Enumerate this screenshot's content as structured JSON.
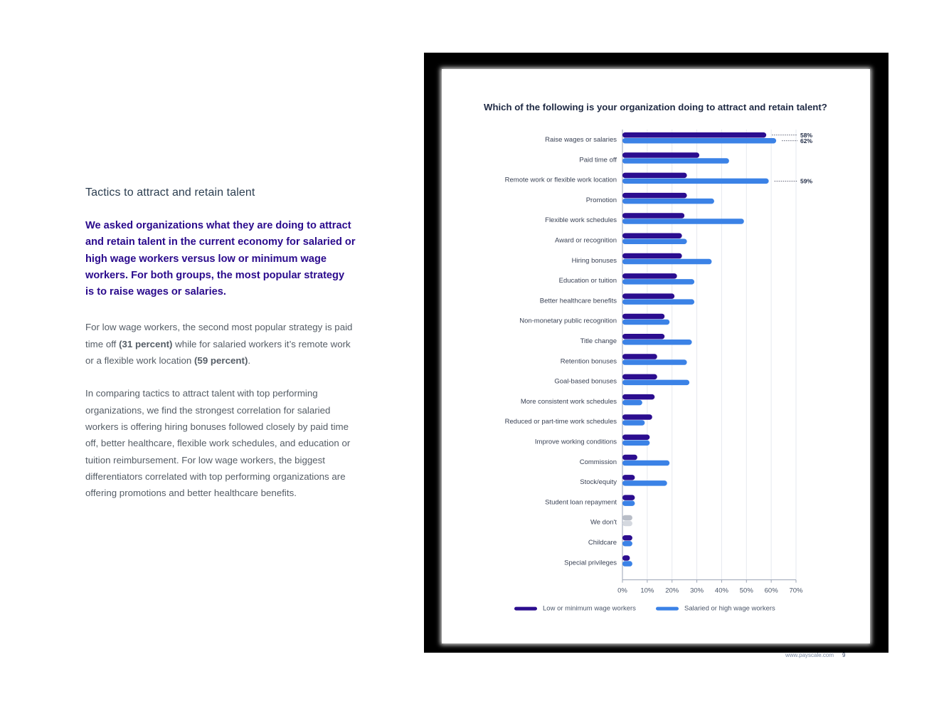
{
  "left_text": {
    "heading": "Tactics to attract and retain talent",
    "lead": "We asked organizations what they are doing to attract and retain talent in the current economy for salaried or high wage workers versus low or minimum wage workers. For both groups, the most popular strategy is to raise wages or salaries.",
    "para2_a": "For low wage workers, the second most popular strategy is paid time off ",
    "para2_b": "(31 percent)",
    "para2_c": " while for salaried workers it’s remote work or a flexible work location ",
    "para2_d": "(59 percent)",
    "para2_e": ".",
    "para3": "In comparing tactics to attract talent with top performing organizations, we find the strongest correlation for salaried workers is offering hiring bonuses followed closely by paid time off, better healthcare, flexible work schedules, and education or tuition reimbursement. For low wage workers, the biggest differentiators correlated with top performing organizations are offering promotions and better healthcare benefits."
  },
  "footer": {
    "url": "www.payscale.com",
    "page": "9"
  },
  "chart_data": {
    "type": "bar",
    "orientation": "horizontal",
    "title": "Which of the following is your organization doing to attract and retain talent?",
    "categories": [
      "Raise wages or salaries",
      "Paid time off",
      "Remote work or flexible work location",
      "Promotion",
      "Flexible work schedules",
      "Award or recognition",
      "Hiring bonuses",
      "Education or tuition",
      "Better healthcare benefits",
      "Non-monetary public recognition",
      "Title change",
      "Retention bonuses",
      "Goal-based bonuses",
      "More consistent work schedules",
      "Reduced or part-time work schedules",
      "Improve working conditions",
      "Commission",
      "Stock/equity",
      "Student loan repayment",
      "We don't",
      "Childcare",
      "Special privileges"
    ],
    "series": [
      {
        "name": "Low or minimum wage workers",
        "color": "#2b0d8f",
        "values": [
          58,
          31,
          26,
          26,
          25,
          24,
          24,
          22,
          21,
          17,
          17,
          14,
          14,
          13,
          12,
          11,
          6,
          5,
          5,
          4,
          4,
          3
        ]
      },
      {
        "name": "Salaried or high wage workers",
        "color": "#3b82e6",
        "values": [
          62,
          43,
          59,
          37,
          49,
          26,
          36,
          29,
          29,
          19,
          28,
          26,
          27,
          8,
          9,
          11,
          19,
          18,
          5,
          4,
          4,
          4
        ]
      }
    ],
    "highlight_category": "We don't",
    "highlight_colors": [
      "#b8bdc7",
      "#d4d8df"
    ],
    "annotations": [
      {
        "category": "Raise wages or salaries",
        "series": 0,
        "text": "58%"
      },
      {
        "category": "Raise wages or salaries",
        "series": 1,
        "text": "62%"
      },
      {
        "category": "Remote work or flexible work location",
        "series": 1,
        "text": "59%"
      }
    ],
    "xlim": [
      0,
      70
    ],
    "xticks": [
      "0%",
      "10%",
      "20%",
      "30%",
      "40%",
      "50%",
      "60%",
      "70%"
    ],
    "grid": true,
    "legend_position": "bottom"
  }
}
